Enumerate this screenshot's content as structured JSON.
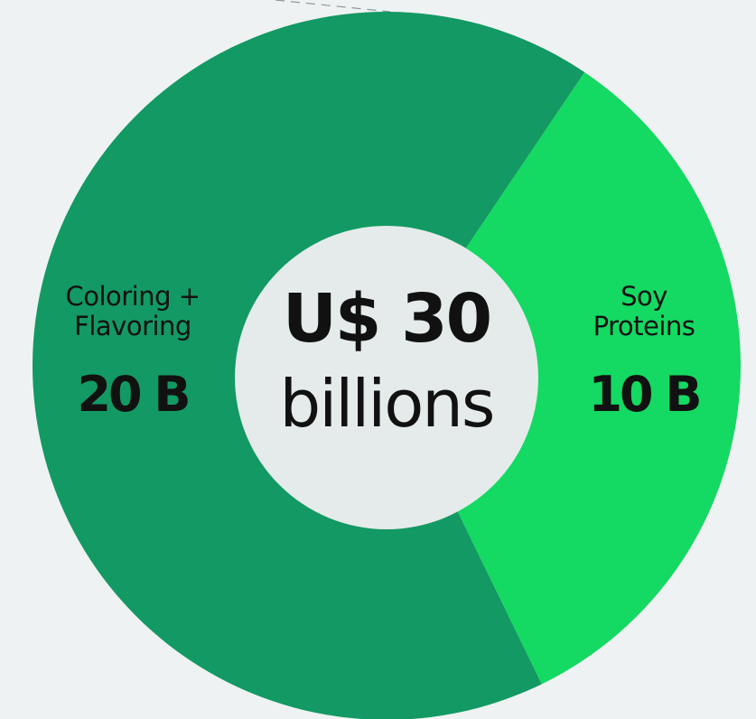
{
  "chart_data": {
    "type": "pie",
    "donut": true,
    "categories": [
      "Coloring + Flavoring",
      "Soy Proteins"
    ],
    "values": [
      20,
      10
    ],
    "value_labels": [
      "20 B",
      "10 B"
    ],
    "colors": [
      "#139963",
      "#14d962"
    ],
    "center_title": "U$ 30",
    "center_subtitle": "billions"
  }
}
